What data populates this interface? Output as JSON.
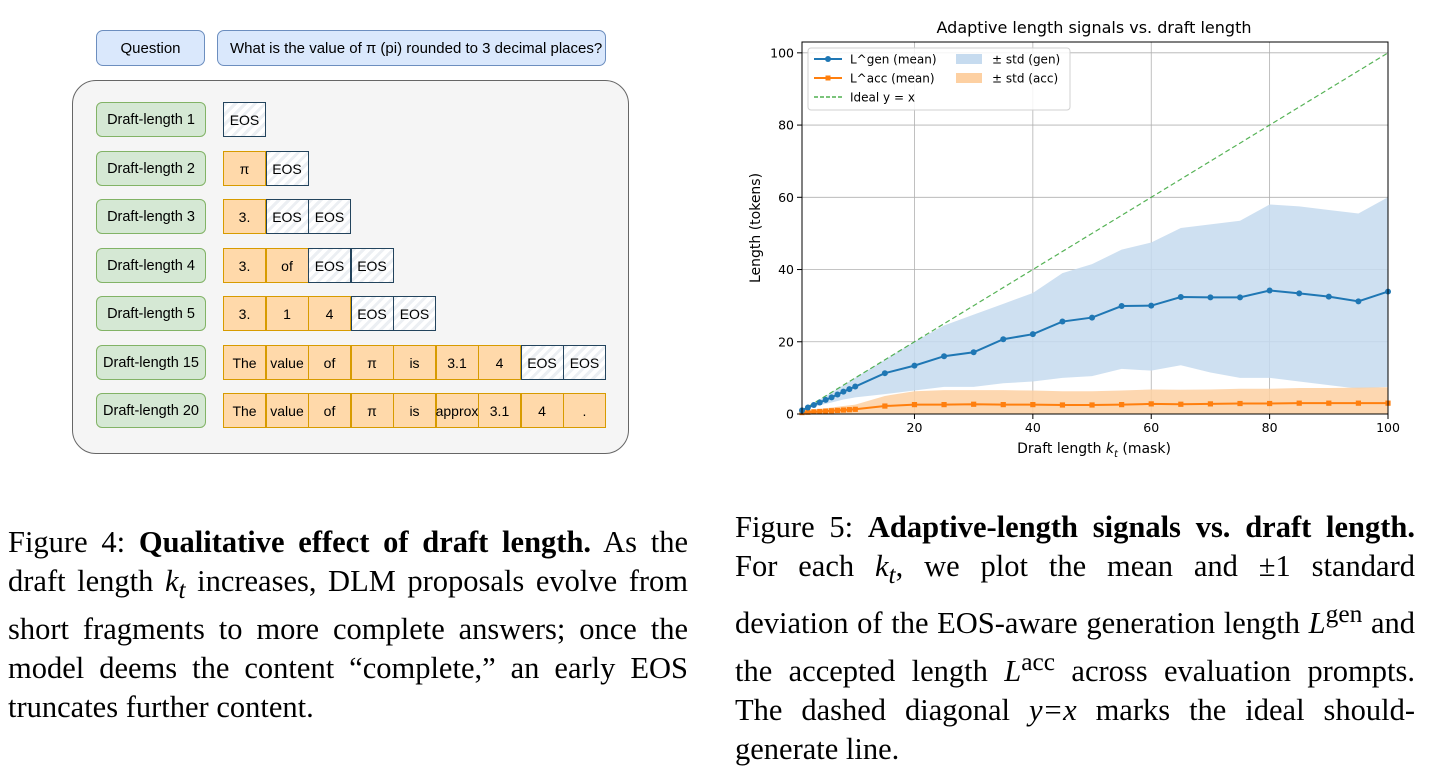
{
  "figure4": {
    "question_label": "Question",
    "question_text": "What is the value of π (pi) rounded to 3 decimal places?",
    "rows": [
      {
        "label": "Draft-length 1",
        "tokens": [
          {
            "t": "EOS",
            "eos": true
          }
        ]
      },
      {
        "label": "Draft-length 2",
        "tokens": [
          {
            "t": "π",
            "eos": false
          },
          {
            "t": "EOS",
            "eos": true
          }
        ]
      },
      {
        "label": "Draft-length 3",
        "tokens": [
          {
            "t": "3.",
            "eos": false
          },
          {
            "t": "EOS",
            "eos": true
          },
          {
            "t": "EOS",
            "eos": true
          }
        ]
      },
      {
        "label": "Draft-length 4",
        "tokens": [
          {
            "t": "3.",
            "eos": false
          },
          {
            "t": "of",
            "eos": false
          },
          {
            "t": "EOS",
            "eos": true
          },
          {
            "t": "EOS",
            "eos": true
          }
        ]
      },
      {
        "label": "Draft-length 5",
        "tokens": [
          {
            "t": "3.",
            "eos": false
          },
          {
            "t": "1",
            "eos": false
          },
          {
            "t": "4",
            "eos": false
          },
          {
            "t": "EOS",
            "eos": true
          },
          {
            "t": "EOS",
            "eos": true
          }
        ]
      },
      {
        "label": "Draft-length 15",
        "tokens": [
          {
            "t": "The",
            "eos": false
          },
          {
            "t": "value",
            "eos": false
          },
          {
            "t": "of",
            "eos": false
          },
          {
            "t": "π",
            "eos": false
          },
          {
            "t": "is",
            "eos": false
          },
          {
            "t": "3.1",
            "eos": false
          },
          {
            "t": "4",
            "eos": false
          },
          {
            "t": "EOS",
            "eos": true
          },
          {
            "t": "EOS",
            "eos": true
          }
        ]
      },
      {
        "label": "Draft-length 20",
        "tokens": [
          {
            "t": "The",
            "eos": false
          },
          {
            "t": "value",
            "eos": false
          },
          {
            "t": "of",
            "eos": false
          },
          {
            "t": "π",
            "eos": false
          },
          {
            "t": "is",
            "eos": false
          },
          {
            "t": "approx",
            "eos": false
          },
          {
            "t": "3.1",
            "eos": false
          },
          {
            "t": "4",
            "eos": false
          },
          {
            "t": ".",
            "eos": false
          }
        ]
      }
    ],
    "caption": {
      "label": "Figure 4:",
      "title": "Qualitative effect of draft length.",
      "body_pre": "As the draft length ",
      "var": "k",
      "sub": "t",
      "body_mid": " increases, DLM proposals evolve from short fragments to more complete answers; once the model deems the content “complete,” an early ",
      "eos": "EOS",
      "body_post": " truncates further content."
    }
  },
  "figure5": {
    "caption": {
      "label": "Figure 5:",
      "title": "Adaptive-length signals vs. draft length.",
      "t1": " For each ",
      "var": "k",
      "sub": "t",
      "t2": ", we plot the mean and ±1 standard deviation of the EOS-aware generation length ",
      "lgen": "L",
      "lgen_sup": "gen",
      "t3": " and the accepted length ",
      "lacc": "L",
      "lacc_sup": "acc",
      "t4": " across evaluation prompts. The dashed diagonal ",
      "eq": "y=x",
      "t5": " marks the ideal should-generate line."
    }
  },
  "chart_data": {
    "type": "line",
    "title": "Adaptive length signals vs. draft length",
    "xlabel": "Draft length k_t (mask)",
    "ylabel": "Length (tokens)",
    "xlim": [
      1,
      100
    ],
    "ylim": [
      0,
      103
    ],
    "xticks": [
      20,
      40,
      60,
      80,
      100
    ],
    "yticks": [
      0,
      20,
      40,
      60,
      80,
      100
    ],
    "grid": true,
    "legend_position": "top-left",
    "legend": [
      "L^gen (mean)",
      "L^acc (mean)",
      "Ideal y = x",
      "± std (gen)",
      "± std (acc)"
    ],
    "colors": {
      "gen": "#1f77b4",
      "acc": "#ff7f0e",
      "ideal": "#2ca02c",
      "gen_band": "#c6dbef",
      "acc_band": "#fdd0a2"
    },
    "series": [
      {
        "name": "L^gen (mean)",
        "x": [
          1,
          2,
          3,
          4,
          5,
          6,
          7,
          8,
          9,
          10,
          15,
          20,
          25,
          30,
          35,
          40,
          45,
          50,
          55,
          60,
          65,
          70,
          75,
          80,
          85,
          90,
          95,
          100
        ],
        "values": [
          1,
          1.8,
          2.5,
          3.2,
          3.9,
          4.6,
          5.4,
          6.2,
          6.9,
          7.6,
          11.3,
          13.4,
          16.0,
          17.1,
          20.7,
          22.1,
          25.6,
          26.7,
          29.9,
          30.0,
          32.4,
          32.3,
          32.3,
          34.2,
          33.4,
          32.5,
          31.2,
          33.9
        ],
        "std_upper": [
          1,
          2,
          3,
          4,
          5,
          6,
          7,
          8,
          9,
          10,
          15,
          20,
          24.5,
          27.5,
          30.5,
          33.5,
          39.0,
          41.5,
          45.5,
          47.5,
          51.5,
          52.5,
          53.5,
          58.0,
          57.5,
          56.5,
          55.5,
          60.0
        ],
        "std_lower": [
          1,
          1.6,
          2.0,
          2.4,
          2.8,
          3.2,
          3.6,
          4.0,
          4.3,
          4.6,
          5.5,
          6.5,
          7.5,
          7.5,
          8.5,
          9.0,
          10.0,
          10.5,
          12.5,
          12.0,
          13.5,
          11.5,
          10.0,
          10.0,
          9.0,
          8.0,
          7.0,
          7.5
        ]
      },
      {
        "name": "L^acc (mean)",
        "x": [
          1,
          2,
          3,
          4,
          5,
          6,
          7,
          8,
          9,
          10,
          15,
          20,
          25,
          30,
          35,
          40,
          45,
          50,
          55,
          60,
          65,
          70,
          75,
          80,
          85,
          90,
          95,
          100
        ],
        "values": [
          0.4,
          0.5,
          0.6,
          0.7,
          0.8,
          0.9,
          1.0,
          1.1,
          1.2,
          1.3,
          2.2,
          2.6,
          2.6,
          2.7,
          2.6,
          2.6,
          2.5,
          2.5,
          2.6,
          2.8,
          2.7,
          2.8,
          2.9,
          2.9,
          3.0,
          3.0,
          3.0,
          3.0
        ],
        "std_upper": [
          0.8,
          1.0,
          1.2,
          1.4,
          1.6,
          1.8,
          2.0,
          2.2,
          2.4,
          2.6,
          5.0,
          6.3,
          6.6,
          6.6,
          6.6,
          6.5,
          6.3,
          6.3,
          6.5,
          6.8,
          6.7,
          6.8,
          7.0,
          7.0,
          7.2,
          7.2,
          7.3,
          7.4
        ],
        "std_lower": [
          0,
          0,
          0,
          0,
          0,
          0,
          0,
          0,
          0,
          0,
          0,
          0,
          0,
          0,
          0,
          0,
          0,
          0,
          0,
          0,
          0,
          0,
          0,
          0,
          0,
          0,
          0,
          0
        ]
      },
      {
        "name": "Ideal y = x",
        "x": [
          1,
          100
        ],
        "values": [
          1,
          100
        ]
      }
    ]
  }
}
